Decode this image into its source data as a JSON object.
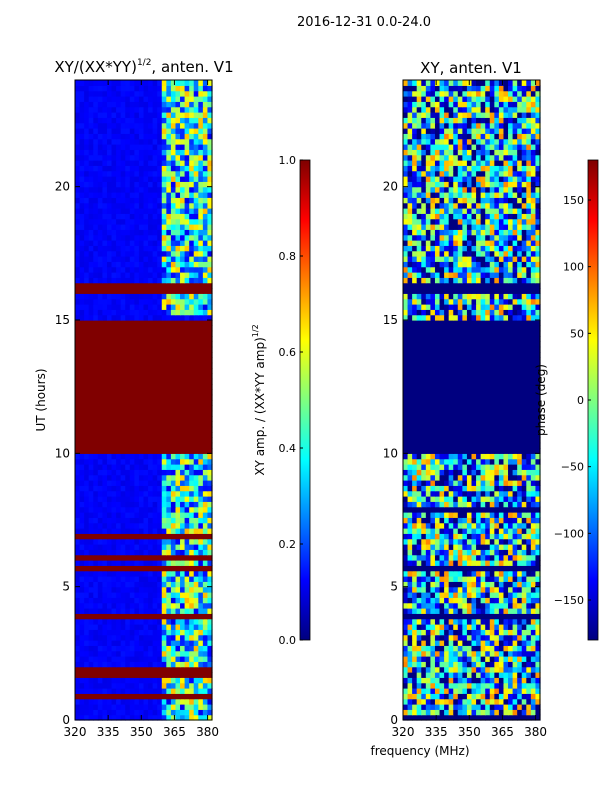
{
  "figure": {
    "suptitle": "2016-12-31 0.0-24.0"
  },
  "chart_data": [
    {
      "type": "heatmap",
      "title_main": "XY/(XX*YY)",
      "title_exp": "1/2",
      "title_tail": ", anten. V1",
      "xlim": [
        320,
        382
      ],
      "xticks": [
        320,
        335,
        350,
        365,
        380
      ],
      "ylim": [
        0,
        24
      ],
      "yticks": [
        0,
        5,
        10,
        15,
        20
      ],
      "ylabel": "UT (hours)",
      "colorbar": {
        "label_main": "XY amp. / (XX*YY amp)",
        "label_exp": "1/2",
        "range": [
          0,
          1
        ],
        "ticks": [
          "0.0",
          "0.2",
          "0.4",
          "0.6",
          "0.8",
          "1.0"
        ],
        "tick_values": [
          0,
          0.2,
          0.4,
          0.6,
          0.8,
          1.0
        ],
        "colormap": "jet"
      },
      "saturated_bands_hours": [
        [
          10.0,
          15.0
        ],
        [
          16.0,
          16.5
        ],
        [
          1.8,
          2.1
        ],
        [
          0.9,
          1.1
        ]
      ],
      "active_band_mhz": [
        360,
        380
      ],
      "background_level": 0.1
    },
    {
      "type": "heatmap",
      "title_main": "XY, anten. V1",
      "xlim": [
        320,
        382
      ],
      "xticks": [
        320,
        335,
        350,
        365,
        380
      ],
      "xlabel": "frequency (MHz)",
      "ylim": [
        0,
        24
      ],
      "yticks": [
        0,
        5,
        10,
        15,
        20
      ],
      "colorbar": {
        "label": "phase (deg)",
        "range": [
          -180,
          180
        ],
        "ticks": [
          "150",
          "100",
          "50",
          "0",
          "−50",
          "−100",
          "−150"
        ],
        "tick_values": [
          150,
          100,
          50,
          0,
          -50,
          -100,
          -150
        ],
        "colormap": "jet"
      },
      "constant_band_hours": [
        [
          10.0,
          15.0
        ],
        [
          16.0,
          16.5
        ]
      ],
      "constant_value_deg": -180
    }
  ]
}
